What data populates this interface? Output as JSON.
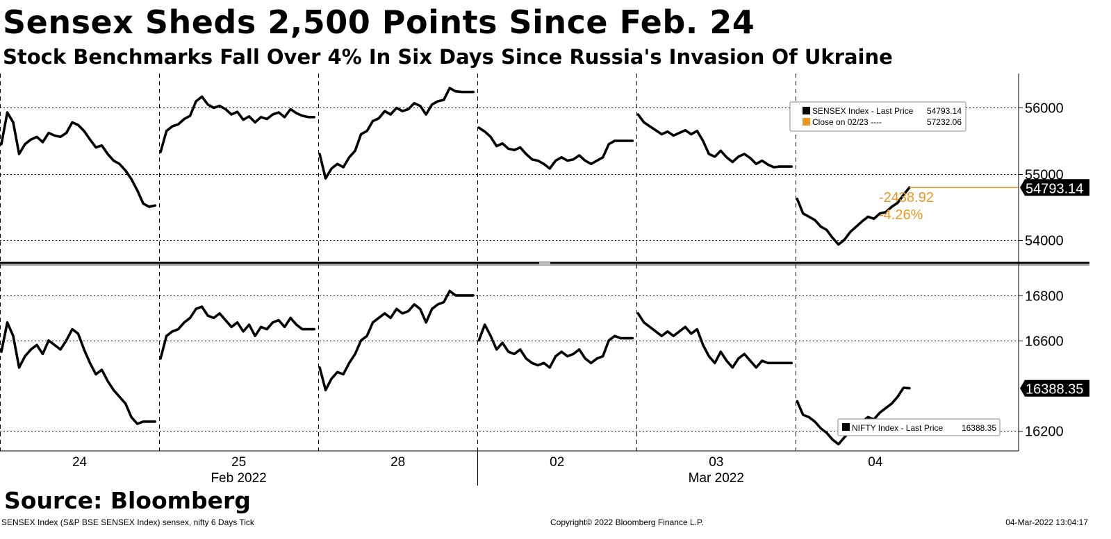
{
  "header": {
    "title": "Sensex Sheds 2,500 Points Since Feb. 24",
    "subtitle": "Stock Benchmarks Fall Over 4% In Six Days Since Russia's Invasion Of Ukraine"
  },
  "footer": {
    "source": "Source: Bloomberg",
    "left_note": "SENSEX Index (S&P BSE SENSEX Index) sensex, nifty 6 Days  Tick",
    "copyright": "Copyright© 2022 Bloomberg Finance L.P.",
    "timestamp": "04-Mar-2022 13:04:17"
  },
  "colors": {
    "line": "#000000",
    "close": "#f0961e",
    "grid": "#000000",
    "background": "#ffffff"
  },
  "chart_data": [
    {
      "type": "line",
      "panel": "top",
      "title": "",
      "categories": [
        "24",
        "25",
        "28",
        "02",
        "03",
        "04"
      ],
      "month_labels": [
        {
          "label": "Feb 2022",
          "under": "25"
        },
        {
          "label": "Mar 2022",
          "under": "03"
        }
      ],
      "yticks": [
        54000,
        55000,
        56000
      ],
      "ylim": [
        53650,
        56520
      ],
      "grid": true,
      "legend_position": "top-right",
      "legend": [
        {
          "swatch": "#000000",
          "label": "SENSEX Index - Last Price",
          "value": "54793.14"
        },
        {
          "swatch": "#f0961e",
          "label": "Close on 02/23 ----",
          "value": "57232.06"
        }
      ],
      "last_price_label": "54793.14",
      "change_labels": [
        "-2438.92",
        "-4.26%"
      ],
      "series": [
        {
          "name": "SENSEX Index",
          "days": [
            [
              55450,
              55930,
              55780,
              55300,
              55450,
              55520,
              55560,
              55480,
              55620,
              55580,
              55560,
              55620,
              55780,
              55740,
              55650,
              55520,
              55400,
              55430,
              55300,
              55200,
              55150,
              55050,
              54920,
              54750,
              54550,
              54500,
              54520
            ],
            [
              55330,
              55650,
              55720,
              55750,
              55830,
              55880,
              56100,
              56170,
              56050,
              56000,
              56030,
              55980,
              55900,
              55940,
              55820,
              55870,
              55780,
              55860,
              55830,
              55900,
              55930,
              55860,
              55980,
              55920,
              55880,
              55860,
              55860
            ],
            [
              55300,
              54930,
              55080,
              55150,
              55100,
              55250,
              55350,
              55600,
              55650,
              55800,
              55840,
              55950,
              55900,
              56000,
              55950,
              55980,
              56070,
              56030,
              55900,
              56050,
              56100,
              56120,
              56300,
              56250,
              56240,
              56240,
              56240
            ],
            [
              55700,
              55640,
              55560,
              55420,
              55460,
              55380,
              55360,
              55400,
              55300,
              55220,
              55200,
              55150,
              55080,
              55200,
              55250,
              55200,
              55220,
              55280,
              55200,
              55150,
              55200,
              55250,
              55450,
              55500,
              55500,
              55500,
              55500
            ],
            [
              55900,
              55780,
              55720,
              55660,
              55600,
              55640,
              55580,
              55620,
              55660,
              55600,
              55650,
              55500,
              55300,
              55260,
              55350,
              55250,
              55180,
              55260,
              55300,
              55240,
              55150,
              55200,
              55140,
              55100,
              55110,
              55110,
              55110
            ],
            [
              54620,
              54400,
              54350,
              54300,
              54200,
              54150,
              54030,
              53930,
              54000,
              54120,
              54200,
              54280,
              54350,
              54320,
              54400,
              54420,
              54500,
              54560,
              54680,
              54793
            ]
          ]
        }
      ],
      "reference_line": {
        "name": "Close on 02/23",
        "value": 57232.06
      }
    },
    {
      "type": "line",
      "panel": "bottom",
      "title": "",
      "categories": [
        "24",
        "25",
        "28",
        "02",
        "03",
        "04"
      ],
      "yticks": [
        16200,
        16600,
        16800
      ],
      "ylim": [
        16110,
        16935
      ],
      "grid": true,
      "legend_position": "bottom-right",
      "legend": [
        {
          "swatch": "#000000",
          "label": "NIFTY Index - Last Price",
          "value": "16388.35"
        }
      ],
      "last_price_label": "16388.35",
      "series": [
        {
          "name": "NIFTY Index",
          "days": [
            [
              16550,
              16680,
              16620,
              16480,
              16530,
              16560,
              16580,
              16540,
              16600,
              16580,
              16560,
              16600,
              16650,
              16630,
              16560,
              16500,
              16450,
              16470,
              16420,
              16380,
              16350,
              16320,
              16260,
              16230,
              16240,
              16240,
              16240
            ],
            [
              16520,
              16620,
              16640,
              16650,
              16680,
              16700,
              16740,
              16750,
              16710,
              16700,
              16720,
              16690,
              16660,
              16680,
              16640,
              16670,
              16620,
              16660,
              16650,
              16680,
              16690,
              16660,
              16700,
              16670,
              16650,
              16650,
              16650
            ],
            [
              16480,
              16380,
              16430,
              16460,
              16450,
              16500,
              16540,
              16600,
              16620,
              16680,
              16700,
              16720,
              16700,
              16740,
              16720,
              16730,
              16760,
              16740,
              16680,
              16740,
              16760,
              16770,
              16820,
              16800,
              16800,
              16800,
              16800
            ],
            [
              16600,
              16670,
              16620,
              16560,
              16590,
              16550,
              16540,
              16560,
              16520,
              16500,
              16490,
              16500,
              16480,
              16530,
              16550,
              16530,
              16540,
              16560,
              16520,
              16500,
              16520,
              16530,
              16600,
              16620,
              16610,
              16610,
              16610
            ],
            [
              16720,
              16680,
              16660,
              16640,
              16620,
              16640,
              16620,
              16640,
              16660,
              16630,
              16650,
              16580,
              16530,
              16500,
              16550,
              16510,
              16480,
              16520,
              16540,
              16510,
              16480,
              16510,
              16500,
              16500,
              16500,
              16500,
              16500
            ],
            [
              16330,
              16270,
              16260,
              16240,
              16210,
              16190,
              16160,
              16140,
              16170,
              16200,
              16220,
              16240,
              16260,
              16250,
              16280,
              16300,
              16320,
              16350,
              16390,
              16388
            ]
          ]
        }
      ]
    }
  ]
}
